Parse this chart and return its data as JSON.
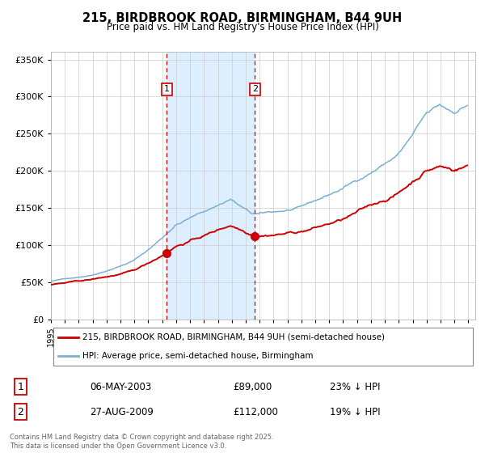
{
  "title": "215, BIRDBROOK ROAD, BIRMINGHAM, B44 9UH",
  "subtitle": "Price paid vs. HM Land Registry's House Price Index (HPI)",
  "legend_line1": "215, BIRDBROOK ROAD, BIRMINGHAM, B44 9UH (semi-detached house)",
  "legend_line2": "HPI: Average price, semi-detached house, Birmingham",
  "annotation1_date": "06-MAY-2003",
  "annotation1_price": "£89,000",
  "annotation1_hpi": "23% ↓ HPI",
  "annotation2_date": "27-AUG-2009",
  "annotation2_price": "£112,000",
  "annotation2_hpi": "19% ↓ HPI",
  "footnote": "Contains HM Land Registry data © Crown copyright and database right 2025.\nThis data is licensed under the Open Government Licence v3.0.",
  "red_color": "#cc0000",
  "blue_color": "#7aafd4",
  "shade_color": "#ddeeff",
  "grid_color": "#cccccc",
  "bg_color": "#ffffff",
  "ylim": [
    0,
    360000
  ],
  "yticks": [
    0,
    50000,
    100000,
    150000,
    200000,
    250000,
    300000,
    350000
  ],
  "x_start_year": 1995,
  "x_end_year": 2025,
  "sale1_year": 2003.35,
  "sale1_price": 89000,
  "sale2_year": 2009.65,
  "sale2_price": 112000
}
